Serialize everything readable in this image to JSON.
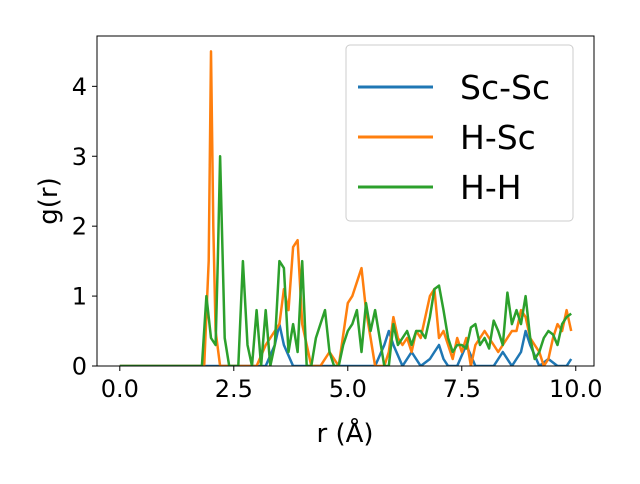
{
  "chart_data": {
    "type": "line",
    "title": "",
    "xlabel": "r (Å)",
    "ylabel": "g(r)",
    "xlim": [
      -0.5,
      10.4
    ],
    "ylim": [
      0,
      4.72
    ],
    "xticks": [
      0.0,
      2.5,
      5.0,
      7.5,
      10.0
    ],
    "xtick_labels": [
      "0.0",
      "2.5",
      "5.0",
      "7.5",
      "10.0"
    ],
    "yticks": [
      0,
      1,
      2,
      3,
      4
    ],
    "ytick_labels": [
      "0",
      "1",
      "2",
      "3",
      "4"
    ],
    "grid": false,
    "legend_position": "top-right",
    "series": [
      {
        "name": "Sc-Sc",
        "color": "#1f77b4",
        "x": [
          0.0,
          1.8,
          3.0,
          3.2,
          3.4,
          3.5,
          3.6,
          3.8,
          4.0,
          5.0,
          5.6,
          5.8,
          5.9,
          6.0,
          6.2,
          6.4,
          6.6,
          6.8,
          6.9,
          7.0,
          7.1,
          7.2,
          7.4,
          7.6,
          7.8,
          8.0,
          8.2,
          8.4,
          8.6,
          8.8,
          8.9,
          9.0,
          9.2,
          9.4,
          9.6,
          9.8,
          9.9
        ],
        "y": [
          0,
          0,
          0,
          0,
          0.3,
          0.6,
          0.3,
          0,
          0,
          0,
          0,
          0.3,
          0.5,
          0.3,
          0,
          0.2,
          0,
          0.1,
          0.2,
          0.3,
          0.1,
          0,
          0,
          0.3,
          0,
          0,
          0,
          0.2,
          0,
          0.2,
          0.5,
          0.3,
          0,
          0.1,
          0,
          0,
          0.1
        ]
      },
      {
        "name": "H-Sc",
        "color": "#ff7f0e",
        "x": [
          0.0,
          1.85,
          1.95,
          2.0,
          2.05,
          2.1,
          2.2,
          2.3,
          2.4,
          3.0,
          3.2,
          3.5,
          3.6,
          3.7,
          3.8,
          3.9,
          4.0,
          4.2,
          4.4,
          4.6,
          4.8,
          5.0,
          5.1,
          5.2,
          5.3,
          5.4,
          5.5,
          5.6,
          5.8,
          5.9,
          6.0,
          6.1,
          6.2,
          6.3,
          6.4,
          6.5,
          6.6,
          6.8,
          6.9,
          7.0,
          7.1,
          7.2,
          7.3,
          7.4,
          7.5,
          7.6,
          7.7,
          7.8,
          7.9,
          8.0,
          8.1,
          8.2,
          8.3,
          8.4,
          8.6,
          8.7,
          8.8,
          8.9,
          9.0,
          9.1,
          9.2,
          9.3,
          9.4,
          9.5,
          9.6,
          9.7,
          9.8,
          9.9
        ],
        "y": [
          0,
          0,
          1.5,
          4.5,
          2.0,
          0.5,
          0,
          0,
          0,
          0,
          0.3,
          0.6,
          1.1,
          0.8,
          1.7,
          1.8,
          0.6,
          0,
          0,
          0.2,
          0,
          0.9,
          1.0,
          1.2,
          1.4,
          0.8,
          0.4,
          0,
          0,
          0.2,
          0.7,
          0.4,
          0.3,
          0.4,
          0.2,
          0.5,
          0.4,
          1.0,
          1.1,
          0.4,
          0.5,
          0.3,
          0.1,
          0.4,
          0.2,
          0.4,
          0,
          0.3,
          0.4,
          0.5,
          0.4,
          0.3,
          0.2,
          0.3,
          0.5,
          0.5,
          0.8,
          0.7,
          0.4,
          0.3,
          0.2,
          0,
          0.1,
          0.4,
          0.6,
          0.5,
          0.8,
          0.5
        ]
      },
      {
        "name": "H-H",
        "color": "#2ca02c",
        "x": [
          0.0,
          1.8,
          1.9,
          2.0,
          2.1,
          2.15,
          2.2,
          2.3,
          2.4,
          2.5,
          2.6,
          2.7,
          2.8,
          2.9,
          3.0,
          3.1,
          3.2,
          3.3,
          3.4,
          3.5,
          3.6,
          3.7,
          3.8,
          3.9,
          4.0,
          4.1,
          4.2,
          4.3,
          4.4,
          4.5,
          4.6,
          4.7,
          4.8,
          4.9,
          5.0,
          5.1,
          5.2,
          5.3,
          5.4,
          5.5,
          5.6,
          5.7,
          5.8,
          5.9,
          6.0,
          6.1,
          6.2,
          6.3,
          6.4,
          6.5,
          6.6,
          6.7,
          6.8,
          6.9,
          7.0,
          7.1,
          7.2,
          7.3,
          7.4,
          7.5,
          7.6,
          7.7,
          7.8,
          7.9,
          8.0,
          8.1,
          8.2,
          8.3,
          8.4,
          8.5,
          8.6,
          8.7,
          8.8,
          8.9,
          9.0,
          9.1,
          9.2,
          9.3,
          9.4,
          9.5,
          9.6,
          9.7,
          9.8,
          9.9
        ],
        "y": [
          0,
          0,
          1.0,
          0.4,
          0.3,
          1.5,
          3.0,
          0.4,
          0,
          0,
          0,
          1.5,
          0.3,
          0,
          0.8,
          0,
          0.8,
          0,
          0.3,
          1.5,
          1.4,
          0.2,
          0.6,
          0.2,
          1.5,
          0,
          0,
          0.4,
          0.6,
          0.8,
          0.2,
          0,
          0,
          0.3,
          0.5,
          0.6,
          0.8,
          0.2,
          0.9,
          0.5,
          0.8,
          0.4,
          0,
          0,
          0.6,
          0.3,
          0.4,
          0.5,
          0.3,
          0.5,
          0.5,
          0.4,
          0.7,
          1.1,
          1.15,
          0.8,
          0.4,
          0.2,
          0.3,
          0.3,
          0.25,
          0.55,
          0.6,
          0.3,
          0.4,
          0.25,
          0.65,
          0.5,
          0.3,
          1.05,
          0.6,
          0.8,
          0.6,
          1.0,
          0.4,
          0.1,
          0.2,
          0.4,
          0.5,
          0.45,
          0.3,
          0.6,
          0.7,
          0.75
        ]
      }
    ]
  }
}
